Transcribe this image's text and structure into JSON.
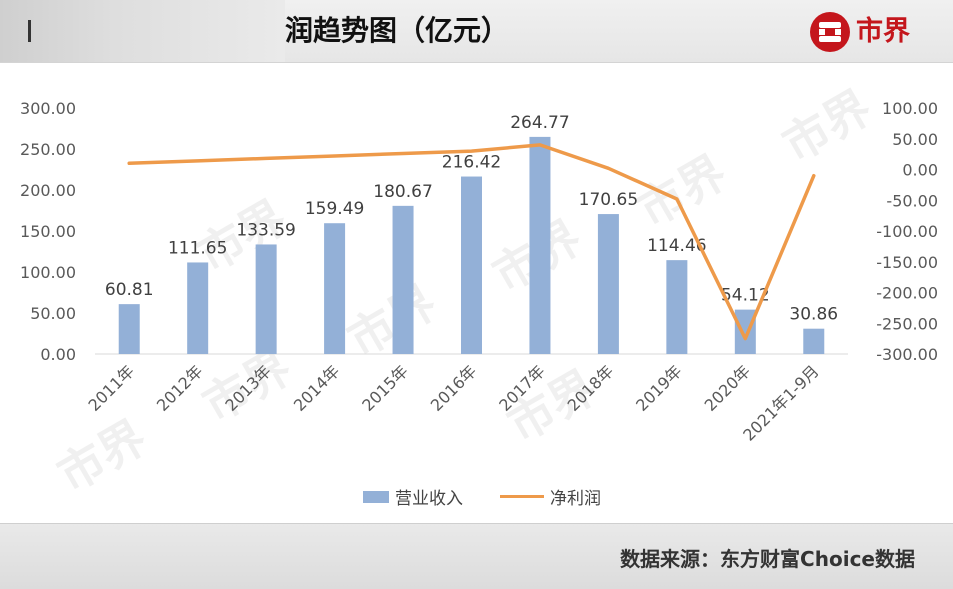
{
  "header": {
    "title_fragment": "润趋势图（亿元）",
    "logo_text": "市界"
  },
  "legend": {
    "bar_label": "营业收入",
    "line_label": "净利润"
  },
  "footer": {
    "source": "数据来源：东方财富Choice数据"
  },
  "watermark": "市界",
  "chart_data": {
    "type": "bar",
    "title": "",
    "categories": [
      "2011年",
      "2012年",
      "2013年",
      "2014年",
      "2015年",
      "2016年",
      "2017年",
      "2018年",
      "2019年",
      "2020年",
      "2021年1-9月"
    ],
    "series": [
      {
        "name": "营业收入",
        "type": "bar",
        "axis": "left",
        "color": "#93b0d7",
        "values": [
          60.81,
          111.65,
          133.59,
          159.49,
          180.67,
          216.42,
          264.77,
          170.65,
          114.46,
          54.12,
          30.86
        ],
        "data_labels": [
          "60.81",
          "111.65",
          "133.59",
          "159.49",
          "180.67",
          "216.42",
          "264.77",
          "170.65",
          "114.46",
          "54.12",
          "30.86"
        ]
      },
      {
        "name": "净利润",
        "type": "line",
        "axis": "right",
        "color": "#ee9a4a",
        "values": [
          10,
          14,
          18,
          22,
          26,
          30,
          40,
          2,
          -48,
          -275,
          -10
        ]
      }
    ],
    "left_axis": {
      "min": 0,
      "max": 300,
      "ticks": [
        "0.00",
        "50.00",
        "100.00",
        "150.00",
        "200.00",
        "250.00",
        "300.00"
      ]
    },
    "right_axis": {
      "min": -300,
      "max": 100,
      "ticks": [
        "-300.00",
        "-250.00",
        "-200.00",
        "-150.00",
        "-100.00",
        "-50.00",
        "0.00",
        "50.00",
        "100.00"
      ]
    },
    "grid": false,
    "legend_position": "bottom"
  }
}
